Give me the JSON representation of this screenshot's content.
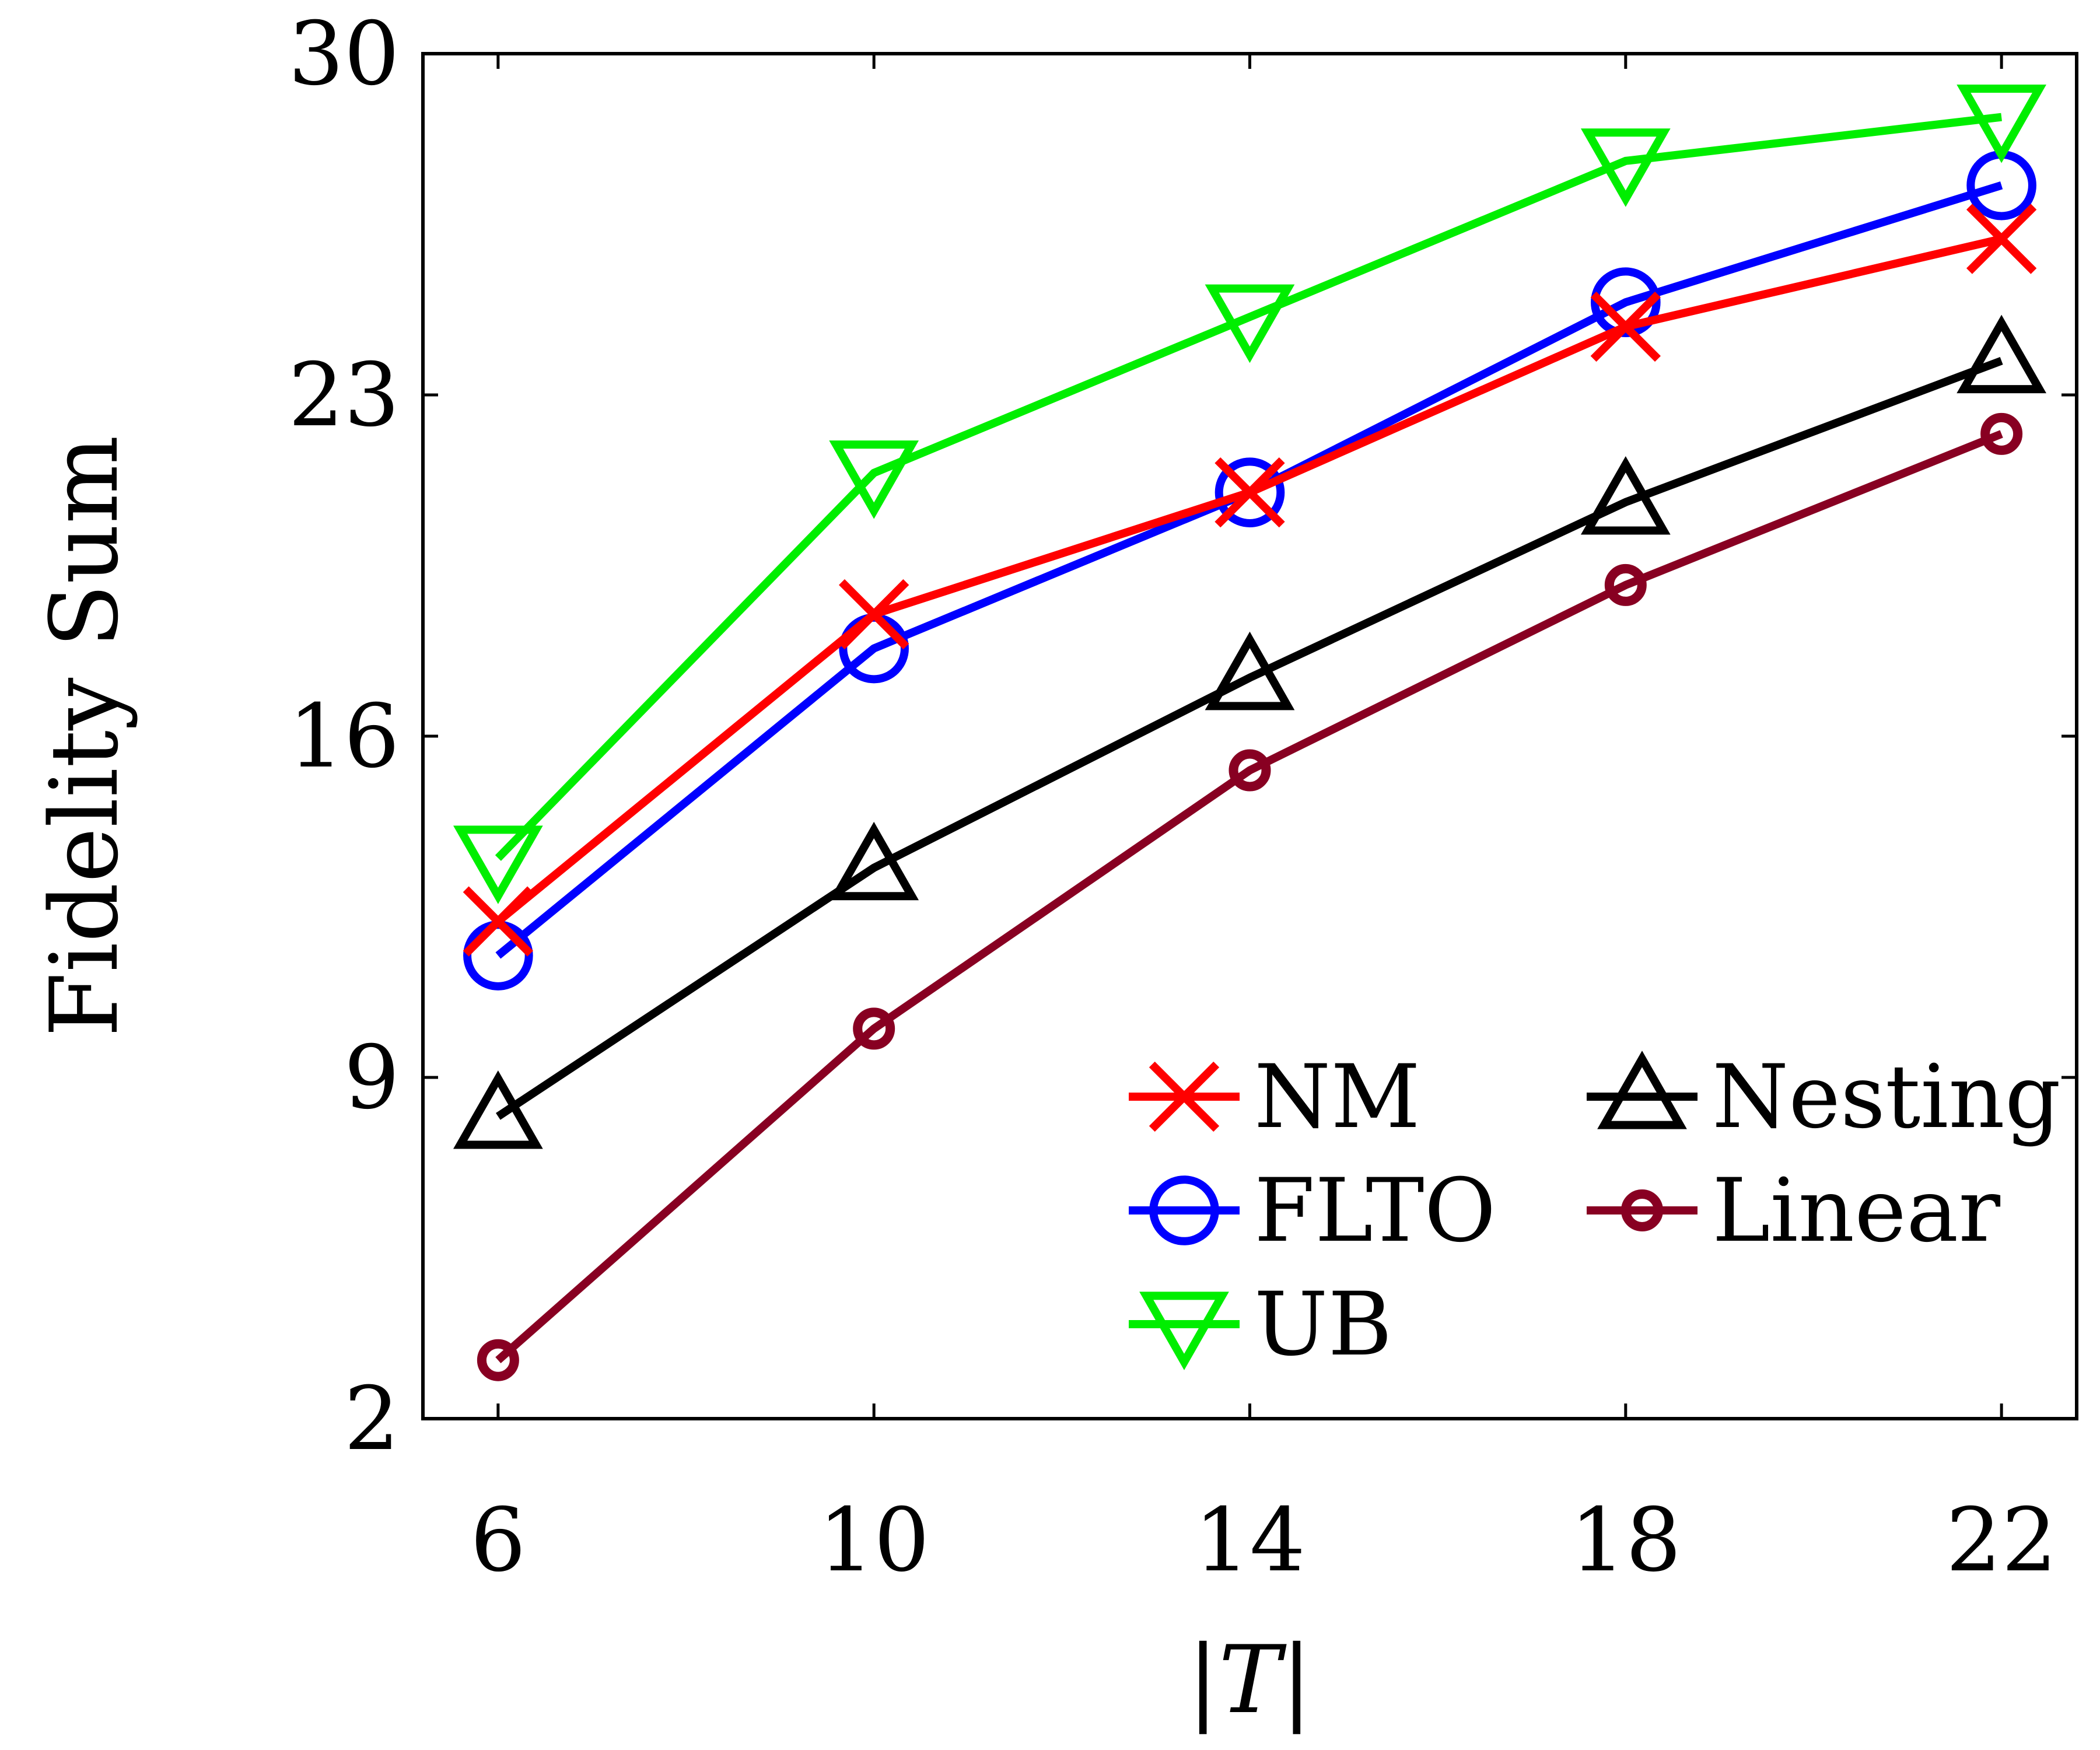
{
  "chart_data": {
    "type": "line",
    "title": "",
    "xlabel": "|T|",
    "ylabel": "Fidelity Sum",
    "x": [
      6,
      10,
      14,
      18,
      22
    ],
    "xticks": [
      6,
      10,
      14,
      18,
      22
    ],
    "yticks": [
      2,
      9,
      16,
      23,
      30
    ],
    "xlim": [
      5.2,
      22.8
    ],
    "ylim": [
      2,
      30
    ],
    "grid": false,
    "legend_position": "bottom-right",
    "series": [
      {
        "name": "NM",
        "color": "#ff0000",
        "marker": "x",
        "values": [
          12.2,
          18.5,
          21.0,
          24.4,
          26.2
        ]
      },
      {
        "name": "FLTO",
        "color": "#0000ff",
        "marker": "circle",
        "values": [
          11.5,
          17.8,
          21.0,
          24.9,
          27.3
        ]
      },
      {
        "name": "UB",
        "color": "#00ee00",
        "marker": "triangle-down",
        "values": [
          13.5,
          21.4,
          24.6,
          27.8,
          28.7
        ]
      },
      {
        "name": "Nesting",
        "color": "#000000",
        "marker": "triangle-up",
        "values": [
          8.2,
          13.3,
          17.2,
          20.8,
          23.7
        ]
      },
      {
        "name": "Linear",
        "color": "#880022",
        "marker": "small-circle",
        "values": [
          3.2,
          10.0,
          15.3,
          19.1,
          22.2
        ]
      }
    ],
    "legend_rows": [
      [
        "NM",
        "Nesting"
      ],
      [
        "FLTO",
        "Linear"
      ],
      [
        "UB"
      ]
    ]
  }
}
